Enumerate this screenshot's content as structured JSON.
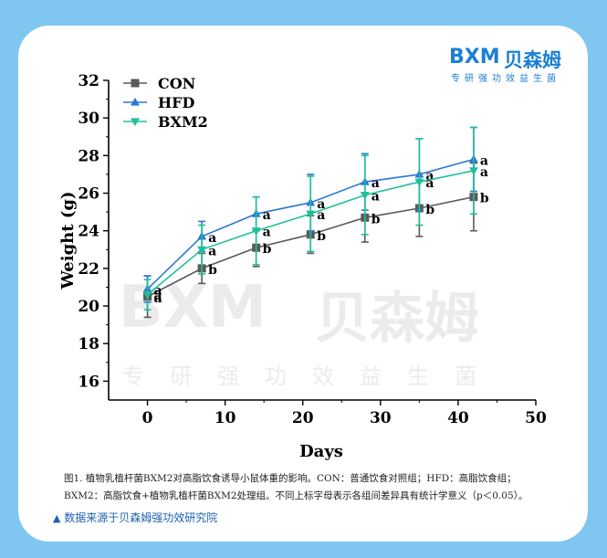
{
  "logo": {
    "mark": "BXM",
    "name": "贝森姆",
    "slogan": "专研强功效益生菌"
  },
  "watermark": {
    "mark": "BXM",
    "name": "贝森姆",
    "slogan": "专研强功效益生菌"
  },
  "chart_data": {
    "type": "line",
    "xlabel": "Days",
    "ylabel": "Weight (g)",
    "xlim": [
      -5,
      50
    ],
    "ylim": [
      15,
      32
    ],
    "xticks": [
      0,
      10,
      20,
      30,
      40,
      50
    ],
    "yticks": [
      16,
      18,
      20,
      22,
      24,
      26,
      28,
      30,
      32
    ],
    "legend_position": "top-left",
    "x": [
      0,
      7,
      14,
      21,
      28,
      35,
      42
    ],
    "series": [
      {
        "name": "CON",
        "color": "#5a5a5a",
        "marker": "square",
        "values": [
          20.5,
          22.0,
          23.1,
          23.8,
          24.7,
          25.2,
          25.8
        ],
        "errors": [
          1.1,
          0.8,
          1.0,
          1.0,
          1.3,
          1.5,
          1.8
        ],
        "labels": [
          "a",
          "b",
          "b",
          "b",
          "b",
          "b",
          "b"
        ]
      },
      {
        "name": "HFD",
        "color": "#2a78d6",
        "marker": "triangle-up",
        "values": [
          20.9,
          23.7,
          24.9,
          25.5,
          26.6,
          27.0,
          27.8
        ],
        "errors": [
          0.7,
          0.8,
          0.9,
          1.5,
          1.5,
          1.9,
          1.7
        ],
        "labels": [
          "a",
          "a",
          "a",
          "a",
          "a",
          "a",
          "a"
        ]
      },
      {
        "name": "BXM2",
        "color": "#1fbf9a",
        "marker": "triangle-down",
        "values": [
          20.6,
          23.0,
          24.0,
          24.9,
          25.9,
          26.6,
          27.2
        ],
        "errors": [
          0.8,
          1.3,
          1.8,
          2.0,
          2.1,
          2.3,
          2.3
        ],
        "labels": [
          "a",
          "a",
          "a",
          "a",
          "a",
          "a",
          "a"
        ]
      }
    ]
  },
  "caption": {
    "line1": "图1. 植物乳植杆菌BXM2对高脂饮食诱导小鼠体重的影响。CON：普通饮食对照组；HFD：高脂饮食组；",
    "line2": "BXM2：高脂饮食+植物乳植杆菌BXM2处理组。不同上标字母表示各组间差异具有统计学意义（p＜0.05）。"
  },
  "source": {
    "marker": "▲",
    "text": "数据来源于贝森姆强功效研究院"
  }
}
